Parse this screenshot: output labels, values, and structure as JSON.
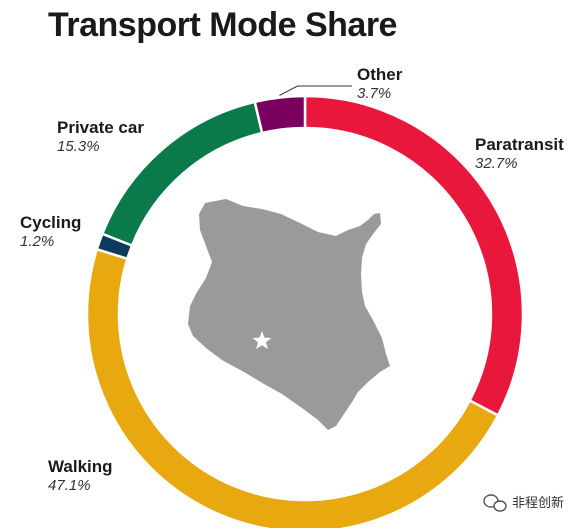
{
  "chart_data": {
    "type": "pie",
    "title": "Transport Mode Share",
    "categories": [
      "Paratransit",
      "Walking",
      "Cycling",
      "Private car",
      "Other"
    ],
    "values": [
      32.7,
      47.1,
      1.2,
      15.3,
      3.7
    ],
    "value_labels": [
      "32.7%",
      "47.1%",
      "1.2%",
      "15.3%",
      "3.7%"
    ],
    "colors": [
      "#e8173b",
      "#e7a90f",
      "#0e3a5f",
      "#0a7a4a",
      "#7a0060"
    ],
    "donut": true,
    "legend": "none",
    "grid": false
  },
  "center_image": "kenya-map-with-nairobi-star",
  "watermark": {
    "text": "非程创新",
    "icon": "wechat-icon"
  }
}
